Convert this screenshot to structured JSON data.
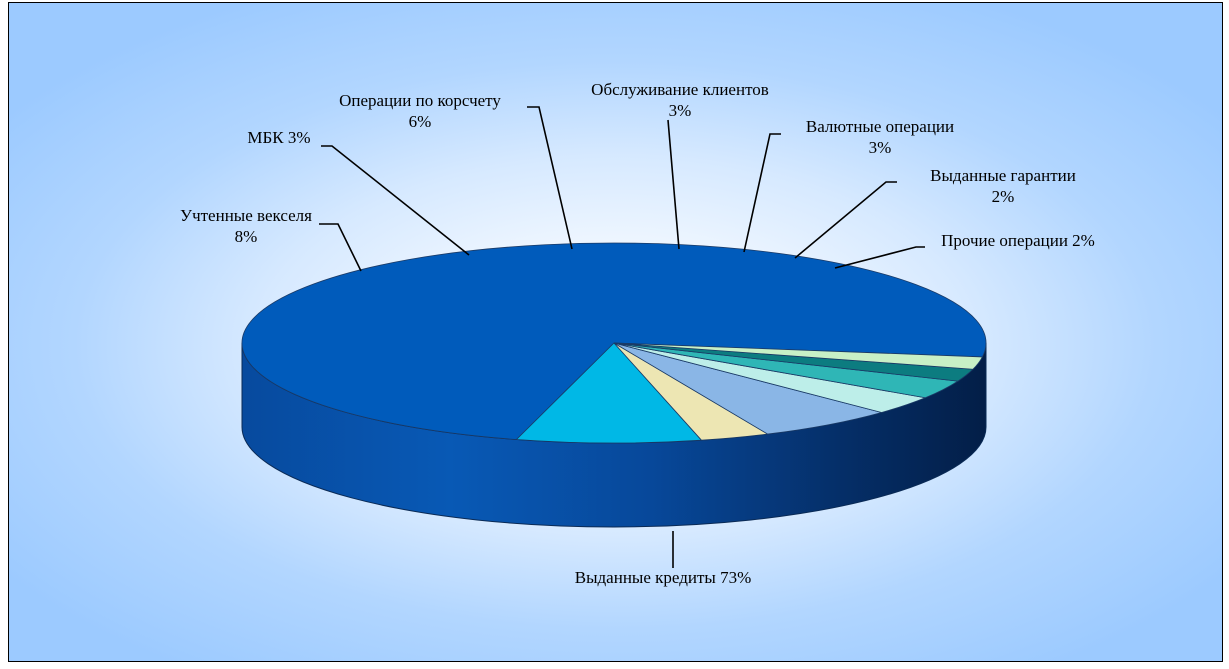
{
  "chart_data": {
    "type": "pie",
    "style": "3d-pie",
    "title": "",
    "slices": [
      {
        "label": "Выданные кредиты 73%",
        "value": 73,
        "color": "#005bbb"
      },
      {
        "label": "Учтенные векселя\n8%",
        "value": 8,
        "color": "#00b8e6"
      },
      {
        "label": "МБК  3%",
        "value": 3,
        "color": "#ede6b3"
      },
      {
        "label": "Операции по корсчету\n6%",
        "value": 6,
        "color": "#8ab6e6"
      },
      {
        "label": "Обслуживание клиентов\n3%",
        "value": 3,
        "color": "#bdeee9"
      },
      {
        "label": "Валютные операции\n3%",
        "value": 3,
        "color": "#2fb6b6"
      },
      {
        "label": "Выданные гарантии\n2%",
        "value": 2,
        "color": "#0c7c80"
      },
      {
        "label": "Прочие операции 2%",
        "value": 2,
        "color": "#c8f0c6"
      }
    ],
    "background": "#9ccaff",
    "legend": "none"
  }
}
